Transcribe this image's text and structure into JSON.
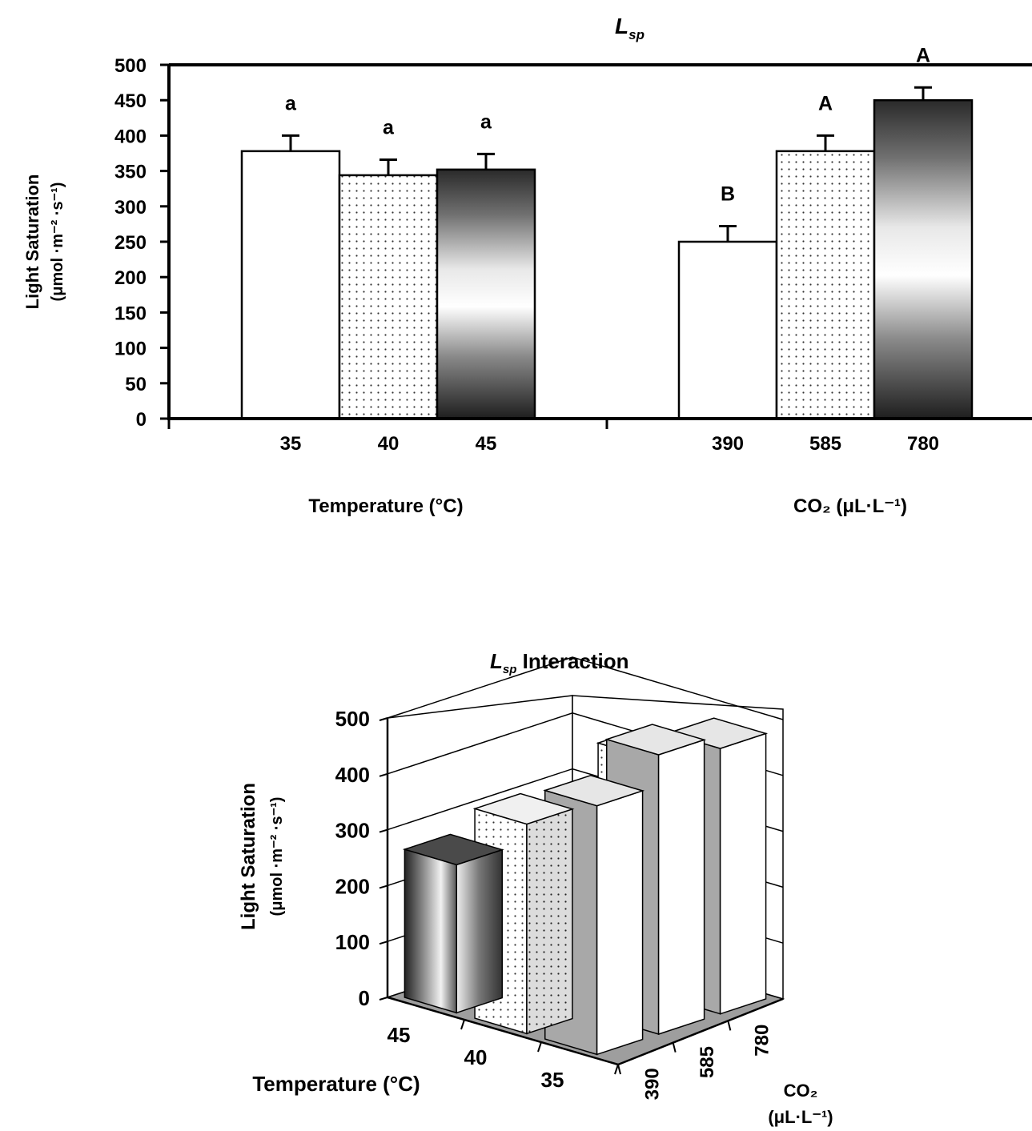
{
  "chart_data": [
    {
      "type": "bar",
      "title_main": "L",
      "title_sub": "sp",
      "ylabel_line1": "Light Saturation",
      "ylabel_line2": "(μmol ·m⁻² ·s⁻¹)",
      "ylim": [
        0,
        500
      ],
      "yticks": [
        "0",
        "50",
        "100",
        "150",
        "200",
        "250",
        "300",
        "350",
        "400",
        "450",
        "500"
      ],
      "grid": false,
      "groups": [
        {
          "xlabel": "Temperature  (°C)",
          "categories": [
            "35",
            "40",
            "45"
          ],
          "values": [
            378,
            344,
            352
          ],
          "error": [
            22,
            22,
            22
          ],
          "letters": [
            "a",
            "a",
            "a"
          ],
          "fills": [
            "white",
            "dots",
            "gradient"
          ]
        },
        {
          "xlabel": "CO₂ (μL·L⁻¹)",
          "categories": [
            "390",
            "585",
            "780"
          ],
          "values": [
            250,
            378,
            450
          ],
          "error": [
            22,
            22,
            18
          ],
          "letters": [
            "B",
            "A",
            "A"
          ],
          "fills": [
            "white",
            "dots",
            "gradient"
          ]
        }
      ]
    },
    {
      "type": "bar3d",
      "title_main": "L",
      "title_sub": "sp",
      "title_rest": " Interaction",
      "ylabel_line1": "Light Saturation",
      "ylabel_line2": "(μmol ·m⁻² ·s⁻¹)",
      "zlim": [
        0,
        500
      ],
      "zticks": [
        "0",
        "100",
        "200",
        "300",
        "400",
        "500"
      ],
      "x_title": "Temperature (°C)",
      "x_categories": [
        "45",
        "40",
        "35"
      ],
      "y_title_line1": "CO₂",
      "y_title_line2": "(μL·L⁻¹)",
      "y_categories": [
        "390",
        "585",
        "780"
      ],
      "series": [
        {
          "name": "390",
          "values": [
            265,
            210,
            200
          ],
          "fill": "gradient"
        },
        {
          "name": "585",
          "values": [
            375,
            345,
            420
          ],
          "fill": "dots"
        },
        {
          "name": "780",
          "values": [
            445,
            500,
            475
          ],
          "fill": "gray"
        }
      ]
    }
  ]
}
